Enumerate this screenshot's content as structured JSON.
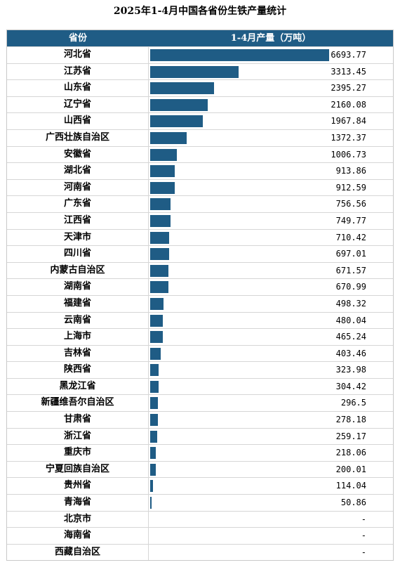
{
  "chart_data": {
    "type": "bar",
    "title": "2025年1-4月中国各省份生铁产量统计",
    "columns": [
      "省份",
      "1-4月产量（万吨）"
    ],
    "categories": [
      "河北省",
      "江苏省",
      "山东省",
      "辽宁省",
      "山西省",
      "广西壮族自治区",
      "安徽省",
      "湖北省",
      "河南省",
      "广东省",
      "江西省",
      "天津市",
      "四川省",
      "内蒙古自治区",
      "湖南省",
      "福建省",
      "云南省",
      "上海市",
      "吉林省",
      "陕西省",
      "黑龙江省",
      "新疆维吾尔自治区",
      "甘肃省",
      "浙江省",
      "重庆市",
      "宁夏回族自治区",
      "贵州省",
      "青海省",
      "北京市",
      "海南省",
      "西藏自治区"
    ],
    "values": [
      6693.77,
      3313.45,
      2395.27,
      2160.08,
      1967.84,
      1372.37,
      1006.73,
      913.86,
      912.59,
      756.56,
      749.77,
      710.42,
      697.01,
      671.57,
      670.99,
      498.32,
      480.04,
      465.24,
      403.46,
      323.98,
      304.42,
      296.5,
      278.18,
      259.17,
      218.06,
      200.01,
      114.04,
      50.86,
      null,
      null,
      null
    ],
    "value_labels": [
      "6693.77",
      "3313.45",
      "2395.27",
      "2160.08",
      "1967.84",
      "1372.37",
      "1006.73",
      "913.86",
      "912.59",
      "756.56",
      "749.77",
      "710.42",
      "697.01",
      "671.57",
      "670.99",
      "498.32",
      "480.04",
      "465.24",
      "403.46",
      "323.98",
      "304.42",
      "296.5",
      "278.18",
      "259.17",
      "218.06",
      "200.01",
      "114.04",
      "50.86",
      "-",
      "-",
      "-"
    ],
    "bar_color": "#1f5c85",
    "header_color": "#1f5c85"
  }
}
